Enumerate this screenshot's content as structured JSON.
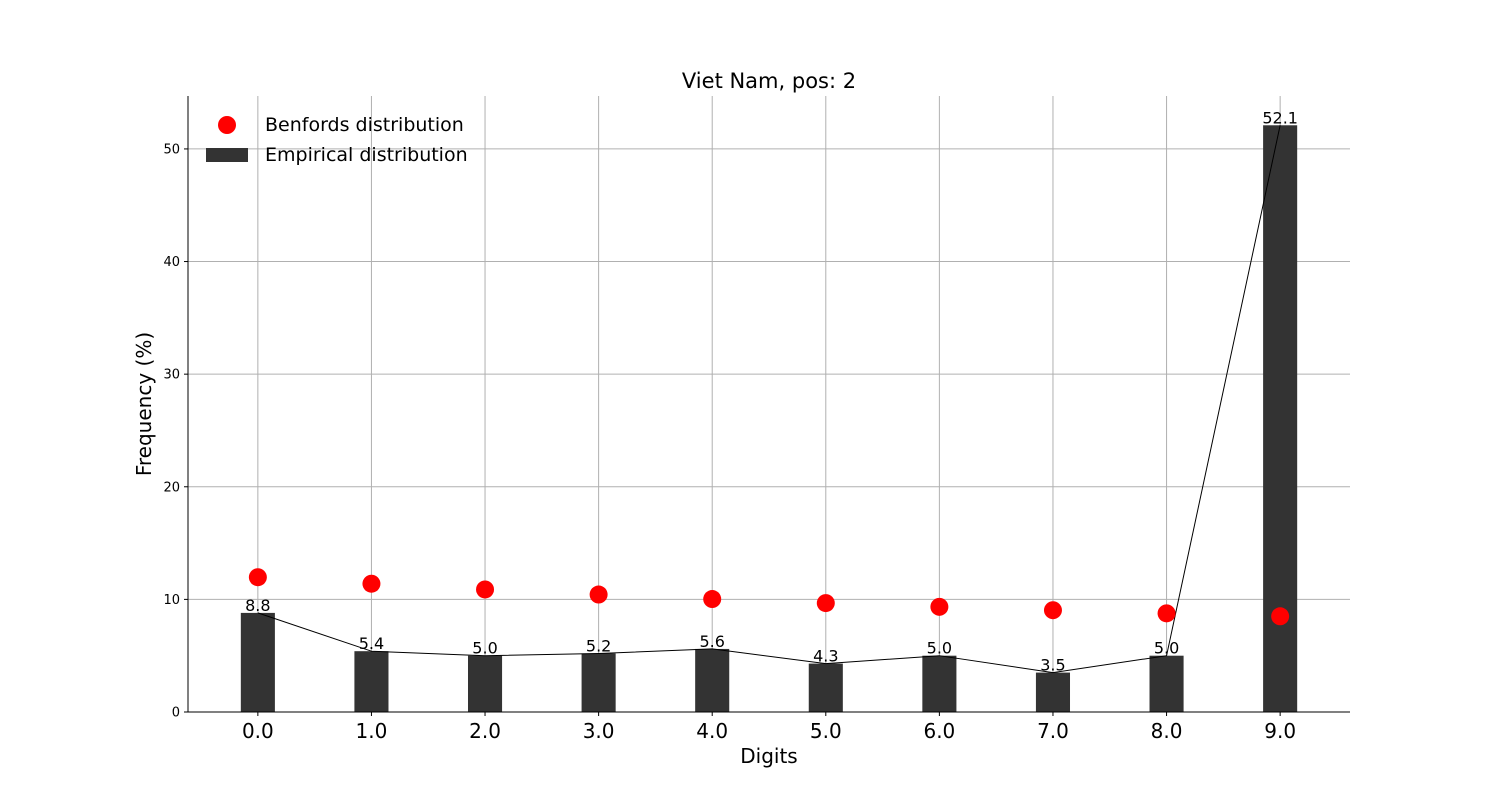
{
  "chart_data": {
    "type": "bar",
    "title": "Viet Nam, pos: 2",
    "x_label": "Digits",
    "y_label": "Frequency (%)",
    "x": [
      0,
      1,
      2,
      3,
      4,
      5,
      6,
      7,
      8,
      9
    ],
    "xlim": [
      -0.615,
      9.615
    ],
    "xticks": [
      {
        "value": 0,
        "label": "0.0"
      },
      {
        "value": 1,
        "label": "1.0"
      },
      {
        "value": 2,
        "label": "2.0"
      },
      {
        "value": 3,
        "label": "3.0"
      },
      {
        "value": 4,
        "label": "4.0"
      },
      {
        "value": 5,
        "label": "5.0"
      },
      {
        "value": 6,
        "label": "6.0"
      },
      {
        "value": 7,
        "label": "7.0"
      },
      {
        "value": 8,
        "label": "8.0"
      },
      {
        "value": 9,
        "label": "9.0"
      }
    ],
    "ylim": [
      0,
      54.7
    ],
    "yticks": [
      0,
      10,
      20,
      30,
      40,
      50
    ],
    "grid": true,
    "legend": "upper left",
    "series": [
      {
        "name": "Benfords distribution",
        "type": "scatter",
        "color": "#ff0000",
        "values": [
          11.97,
          11.39,
          10.88,
          10.43,
          10.03,
          9.67,
          9.34,
          9.04,
          8.76,
          8.5
        ]
      },
      {
        "name": "Empirical distribution",
        "type": "bar",
        "color": "#333333",
        "line_color": "#000000",
        "values": [
          8.8,
          5.4,
          5.0,
          5.2,
          5.6,
          4.3,
          5.0,
          3.5,
          5.0,
          52.1
        ],
        "value_labels": [
          "8.8",
          "5.4",
          "5.0",
          "5.2",
          "5.6",
          "4.3",
          "5.0",
          "3.5",
          "5.0",
          "52.1"
        ]
      }
    ]
  }
}
